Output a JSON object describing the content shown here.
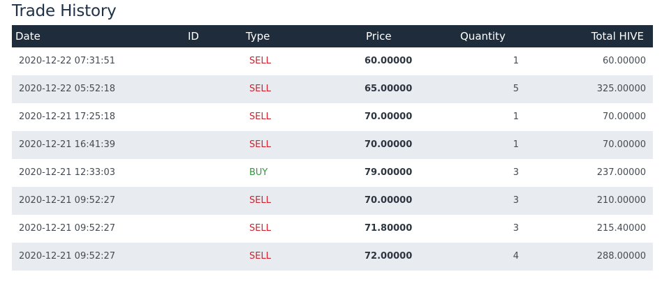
{
  "title": "Trade History",
  "columns": {
    "date": "Date",
    "id": "ID",
    "type": "Type",
    "price": "Price",
    "quantity": "Quantity",
    "total": "Total HIVE"
  },
  "colors": {
    "header_bg": "#1e2c3c",
    "row_alt_bg": "#e8ecf0",
    "sell": "#d11f2d",
    "buy": "#2e9a3e"
  },
  "rows": [
    {
      "date": "2020-12-22 07:31:51",
      "id": "",
      "type": "SELL",
      "price": "60.00000",
      "quantity": "1",
      "total": "60.00000"
    },
    {
      "date": "2020-12-22 05:52:18",
      "id": "",
      "type": "SELL",
      "price": "65.00000",
      "quantity": "5",
      "total": "325.00000"
    },
    {
      "date": "2020-12-21 17:25:18",
      "id": "",
      "type": "SELL",
      "price": "70.00000",
      "quantity": "1",
      "total": "70.00000"
    },
    {
      "date": "2020-12-21 16:41:39",
      "id": "",
      "type": "SELL",
      "price": "70.00000",
      "quantity": "1",
      "total": "70.00000"
    },
    {
      "date": "2020-12-21 12:33:03",
      "id": "",
      "type": "BUY",
      "price": "79.00000",
      "quantity": "3",
      "total": "237.00000"
    },
    {
      "date": "2020-12-21 09:52:27",
      "id": "",
      "type": "SELL",
      "price": "70.00000",
      "quantity": "3",
      "total": "210.00000"
    },
    {
      "date": "2020-12-21 09:52:27",
      "id": "",
      "type": "SELL",
      "price": "71.80000",
      "quantity": "3",
      "total": "215.40000"
    },
    {
      "date": "2020-12-21 09:52:27",
      "id": "",
      "type": "SELL",
      "price": "72.00000",
      "quantity": "4",
      "total": "288.00000"
    }
  ]
}
